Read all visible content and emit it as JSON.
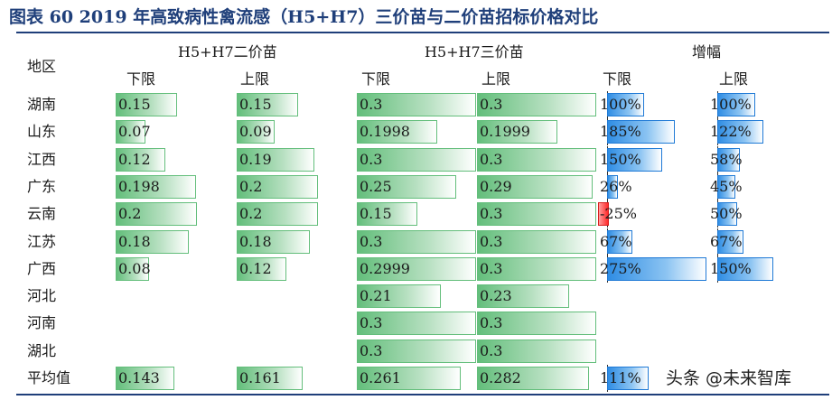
{
  "title": "图表 60   2019 年高致病性禽流感（H5+H7）三价苗与二价苗招标价格对比",
  "headers": {
    "region": "地区",
    "bivalent": "H5+H7二价苗",
    "trivalent": "H5+H7三价苗",
    "growth": "增幅",
    "lower": "下限",
    "upper": "上限"
  },
  "colors": {
    "green": "#63be7b",
    "blue": "#2f8de4",
    "red": "#ff2a2a",
    "rule": "#1f3f7a"
  },
  "rows": [
    {
      "region": "湖南",
      "bi_low": "0.15",
      "bi_high": "0.15",
      "tri_low": "0.3",
      "tri_high": "0.3",
      "gr_low": "100%",
      "gr_high": "100%"
    },
    {
      "region": "山东",
      "bi_low": "0.07",
      "bi_high": "0.09",
      "tri_low": "0.1998",
      "tri_high": "0.1999",
      "gr_low": "185%",
      "gr_high": "122%"
    },
    {
      "region": "江西",
      "bi_low": "0.12",
      "bi_high": "0.19",
      "tri_low": "0.3",
      "tri_high": "0.3",
      "gr_low": "150%",
      "gr_high": "58%"
    },
    {
      "region": "广东",
      "bi_low": "0.198",
      "bi_high": "0.2",
      "tri_low": "0.25",
      "tri_high": "0.29",
      "gr_low": "26%",
      "gr_high": "45%"
    },
    {
      "region": "云南",
      "bi_low": "0.2",
      "bi_high": "0.2",
      "tri_low": "0.15",
      "tri_high": "0.3",
      "gr_low": "-25%",
      "gr_high": "50%"
    },
    {
      "region": "江苏",
      "bi_low": "0.18",
      "bi_high": "0.18",
      "tri_low": "0.3",
      "tri_high": "0.3",
      "gr_low": "67%",
      "gr_high": "67%"
    },
    {
      "region": "广西",
      "bi_low": "0.08",
      "bi_high": "0.12",
      "tri_low": "0.2999",
      "tri_high": "0.3",
      "gr_low": "275%",
      "gr_high": "150%"
    },
    {
      "region": "河北",
      "bi_low": "",
      "bi_high": "",
      "tri_low": "0.21",
      "tri_high": "0.23",
      "gr_low": "",
      "gr_high": ""
    },
    {
      "region": "河南",
      "bi_low": "",
      "bi_high": "",
      "tri_low": "0.3",
      "tri_high": "0.3",
      "gr_low": "",
      "gr_high": ""
    },
    {
      "region": "湖北",
      "bi_low": "",
      "bi_high": "",
      "tri_low": "0.3",
      "tri_high": "0.3",
      "gr_low": "",
      "gr_high": ""
    },
    {
      "region": "平均值",
      "bi_low": "0.143",
      "bi_high": "0.161",
      "tri_low": "0.261",
      "tri_high": "0.282",
      "gr_low": "111%",
      "gr_high": ""
    }
  ],
  "watermark": "头条 @未来智库"
}
